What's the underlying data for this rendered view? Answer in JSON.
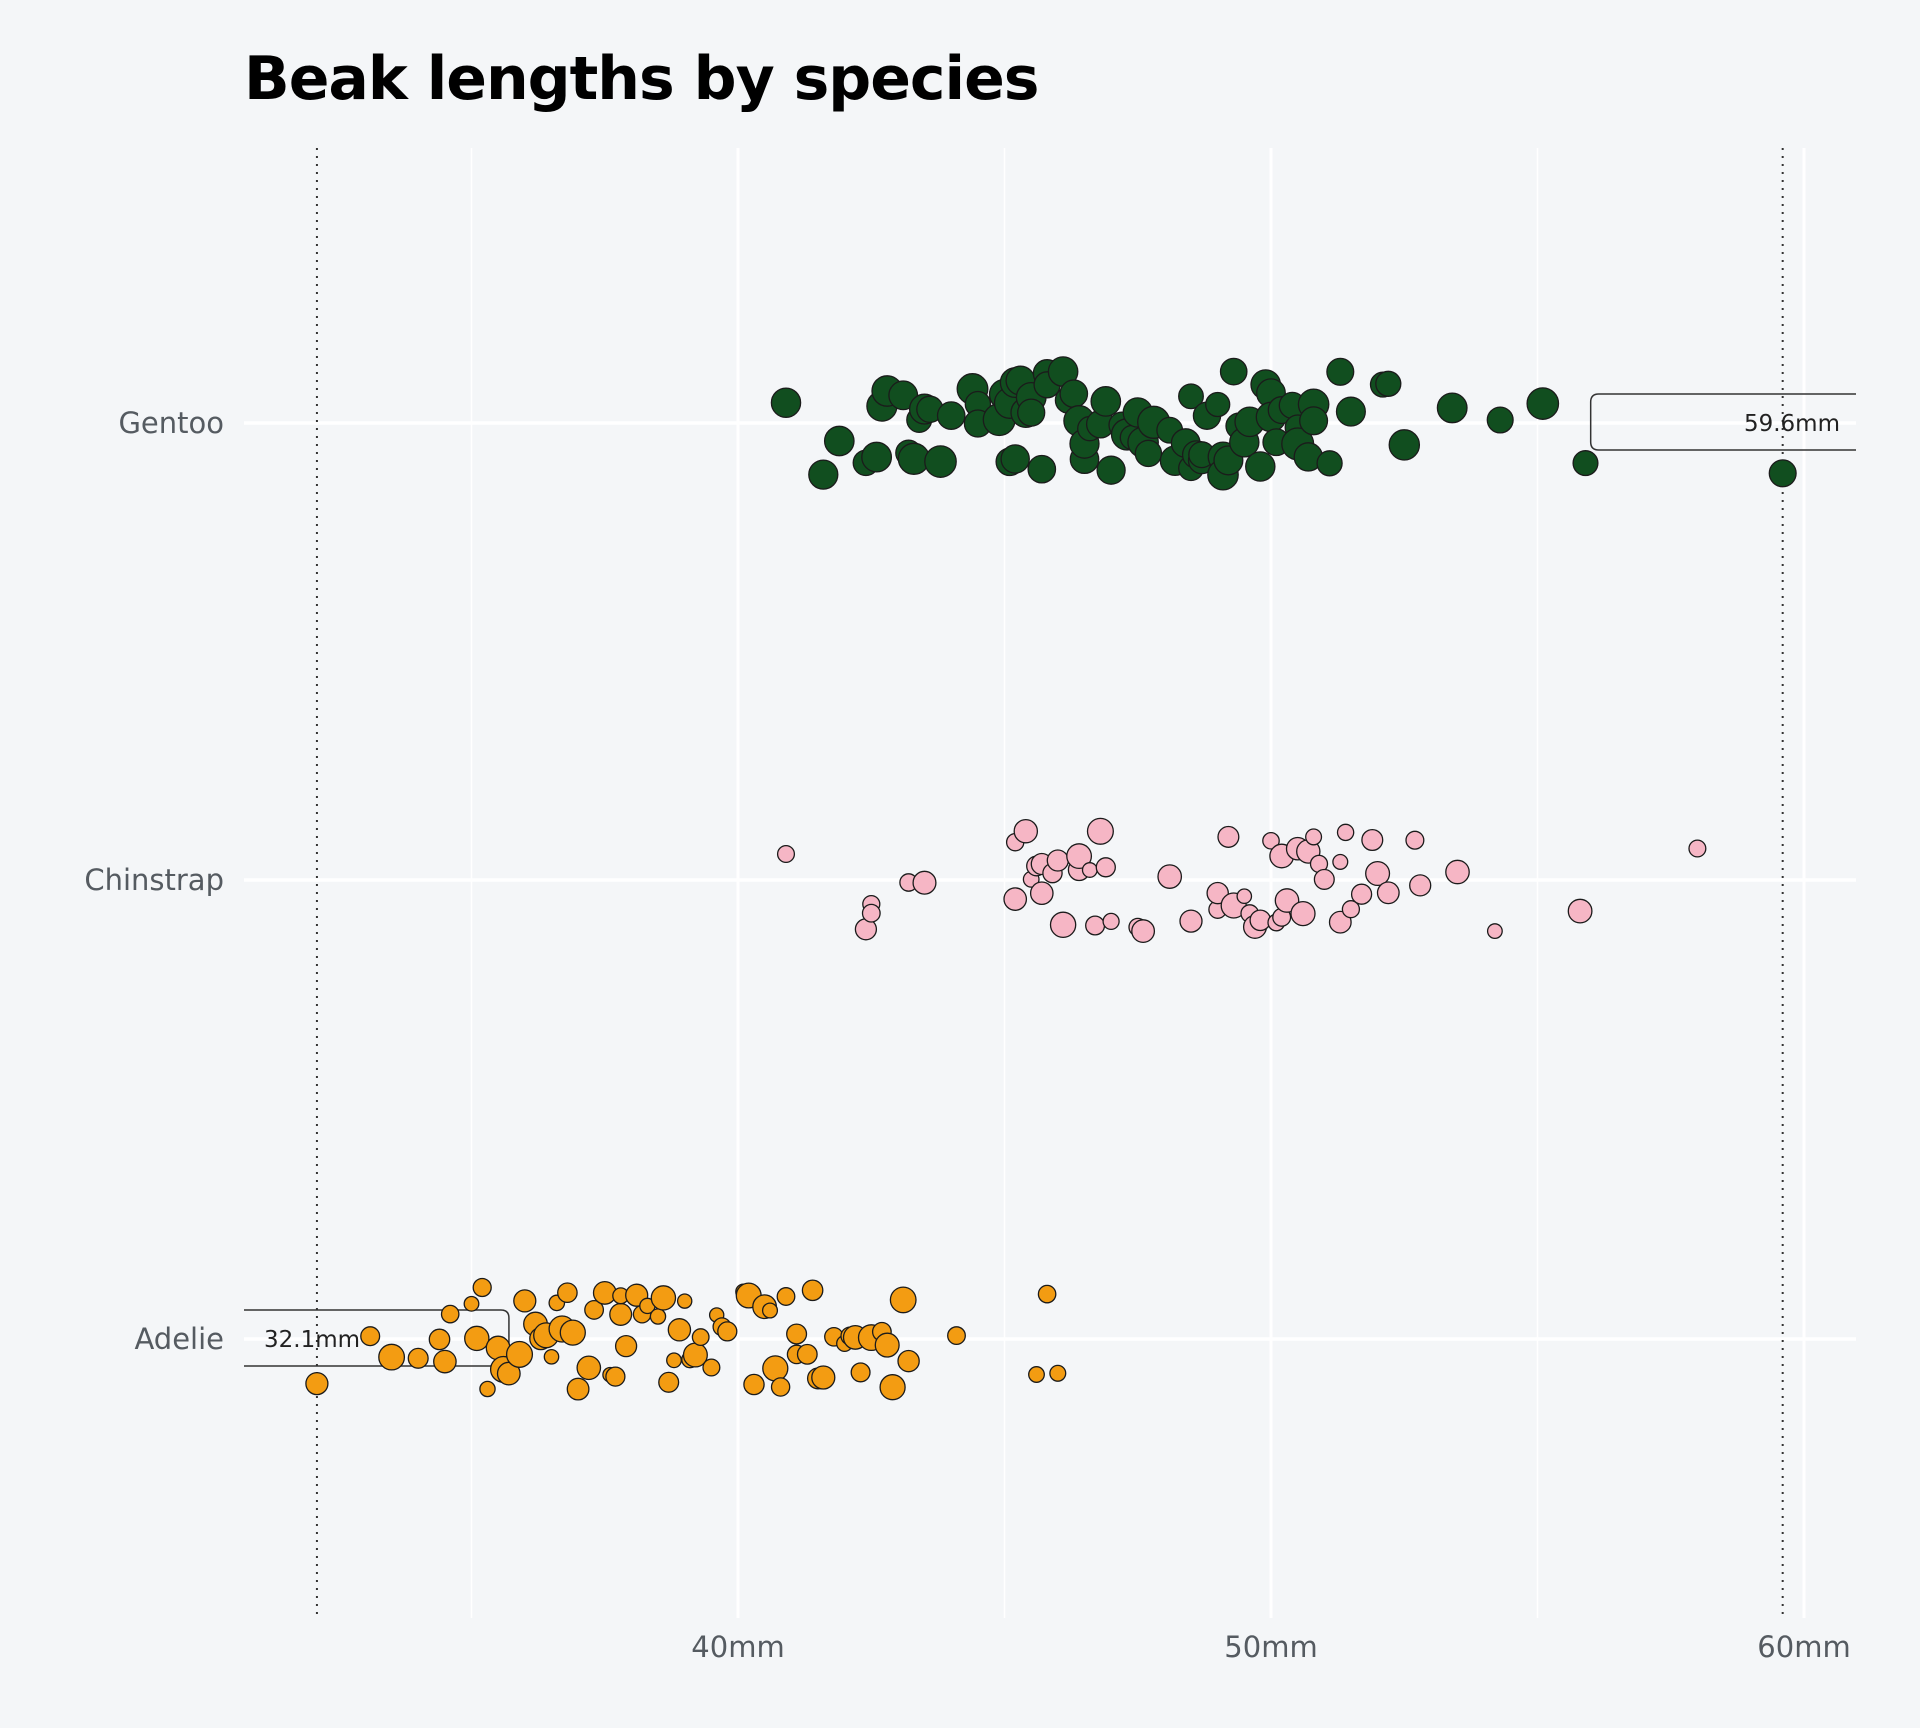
{
  "title": "Beak lengths by species",
  "chart_data": {
    "type": "scatter",
    "title": "Beak lengths by species",
    "xlabel": "",
    "ylabel": "",
    "xlim": [
      30.4,
      61.0
    ],
    "x_ticks": [
      {
        "value": 40,
        "label": "40mm"
      },
      {
        "value": 50,
        "label": "50mm"
      },
      {
        "value": 60,
        "label": "60mm"
      }
    ],
    "minor_gridlines": [
      35,
      45,
      55
    ],
    "reference_lines": [
      32.1,
      59.6
    ],
    "grid": true,
    "categories": [
      "Gentoo",
      "Chinstrap",
      "Adelie"
    ],
    "annotations": [
      {
        "text": "59.6mm",
        "x": 59.6,
        "series": "Gentoo",
        "side": "right"
      },
      {
        "text": "32.1mm",
        "x": 32.1,
        "series": "Adelie",
        "side": "left"
      }
    ],
    "series": [
      {
        "name": "Gentoo",
        "color": "#114e1f",
        "point_size": "large",
        "values": [
          40.9,
          41.6,
          41.9,
          42.4,
          42.6,
          42.7,
          42.8,
          43.1,
          43.2,
          43.3,
          43.4,
          43.5,
          43.6,
          43.8,
          44.0,
          44.4,
          44.5,
          44.5,
          44.9,
          45.0,
          45.1,
          45.1,
          45.2,
          45.2,
          45.3,
          45.4,
          45.5,
          45.5,
          45.7,
          45.8,
          45.8,
          46.1,
          46.2,
          46.3,
          46.4,
          46.5,
          46.5,
          46.6,
          46.8,
          46.9,
          47.0,
          47.2,
          47.3,
          47.4,
          47.5,
          47.6,
          47.7,
          47.8,
          48.1,
          48.2,
          48.4,
          48.5,
          48.5,
          48.6,
          48.7,
          48.7,
          48.8,
          49.0,
          49.1,
          49.1,
          49.2,
          49.3,
          49.4,
          49.5,
          49.6,
          49.8,
          49.9,
          50.0,
          50.0,
          50.1,
          50.2,
          50.4,
          50.5,
          50.5,
          50.7,
          50.8,
          50.8,
          51.1,
          51.3,
          51.5,
          52.1,
          52.2,
          52.5,
          53.4,
          54.3,
          55.1,
          55.9,
          59.6
        ]
      },
      {
        "name": "Chinstrap",
        "color": "#f6b6c5",
        "point_size": "medium",
        "values": [
          40.9,
          42.4,
          42.5,
          42.5,
          43.2,
          43.5,
          45.2,
          45.2,
          45.4,
          45.5,
          45.6,
          45.7,
          45.7,
          45.9,
          46.0,
          46.1,
          46.4,
          46.4,
          46.6,
          46.7,
          46.8,
          46.9,
          47.0,
          47.5,
          47.6,
          48.1,
          48.5,
          49.0,
          49.0,
          49.2,
          49.3,
          49.5,
          49.6,
          49.7,
          49.8,
          50.0,
          50.1,
          50.2,
          50.2,
          50.3,
          50.5,
          50.6,
          50.7,
          50.8,
          50.9,
          51.0,
          51.3,
          51.3,
          51.4,
          51.5,
          51.7,
          51.9,
          52.0,
          52.2,
          52.7,
          52.8,
          53.5,
          54.2,
          55.8,
          58.0
        ]
      },
      {
        "name": "Adelie",
        "color": "#f39c12",
        "point_size": "medium",
        "values": [
          32.1,
          33.1,
          33.5,
          34.0,
          34.4,
          34.5,
          34.6,
          35.0,
          35.1,
          35.2,
          35.3,
          35.5,
          35.6,
          35.7,
          35.9,
          36.0,
          36.2,
          36.3,
          36.4,
          36.5,
          36.6,
          36.7,
          36.8,
          36.9,
          37.0,
          37.2,
          37.3,
          37.5,
          37.6,
          37.7,
          37.8,
          37.8,
          37.9,
          38.1,
          38.2,
          38.3,
          38.5,
          38.6,
          38.7,
          38.8,
          38.9,
          39.0,
          39.1,
          39.2,
          39.3,
          39.5,
          39.6,
          39.7,
          39.8,
          40.1,
          40.2,
          40.3,
          40.5,
          40.6,
          40.7,
          40.8,
          40.9,
          41.1,
          41.1,
          41.3,
          41.4,
          41.5,
          41.6,
          41.8,
          42.0,
          42.1,
          42.2,
          42.3,
          42.5,
          42.7,
          42.8,
          42.9,
          43.1,
          43.2,
          44.1,
          45.6,
          45.8,
          46.0
        ]
      }
    ]
  }
}
